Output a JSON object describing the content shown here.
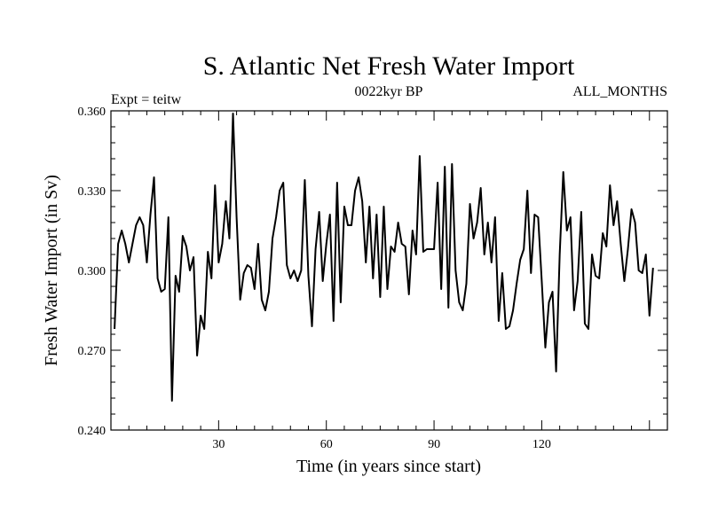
{
  "chart_data": {
    "type": "line",
    "title": "S. Atlantic Net Fresh Water Import",
    "subtitle_left": "Expt = teitw",
    "subtitle_center": "0022kyr BP",
    "subtitle_right": "ALL_MONTHS",
    "xlabel": "Time (in years since start)",
    "ylabel": "Fresh Water Import (in Sv)",
    "xlim": [
      0,
      155
    ],
    "ylim": [
      0.24,
      0.36
    ],
    "x_ticks": [
      30,
      60,
      90,
      120
    ],
    "x_tick_labels": [
      "30",
      "60",
      "90",
      "120"
    ],
    "y_ticks": [
      0.24,
      0.27,
      0.3,
      0.33,
      0.36
    ],
    "y_tick_labels": [
      "0.240",
      "0.270",
      "0.300",
      "0.330",
      "0.360"
    ],
    "grid": false,
    "series": [
      {
        "name": "Net Fresh Water Import",
        "x_start": 1,
        "x_step": 1,
        "values": [
          0.278,
          0.31,
          0.315,
          0.31,
          0.303,
          0.31,
          0.317,
          0.32,
          0.317,
          0.303,
          0.321,
          0.335,
          0.297,
          0.292,
          0.293,
          0.32,
          0.251,
          0.298,
          0.292,
          0.313,
          0.309,
          0.3,
          0.305,
          0.268,
          0.283,
          0.278,
          0.307,
          0.297,
          0.332,
          0.303,
          0.31,
          0.326,
          0.312,
          0.359,
          0.32,
          0.289,
          0.299,
          0.302,
          0.301,
          0.293,
          0.31,
          0.289,
          0.285,
          0.292,
          0.312,
          0.32,
          0.33,
          0.333,
          0.302,
          0.297,
          0.3,
          0.296,
          0.3,
          0.334,
          0.298,
          0.279,
          0.308,
          0.322,
          0.296,
          0.31,
          0.321,
          0.281,
          0.333,
          0.288,
          0.324,
          0.317,
          0.317,
          0.33,
          0.335,
          0.326,
          0.303,
          0.324,
          0.297,
          0.321,
          0.29,
          0.324,
          0.293,
          0.309,
          0.307,
          0.318,
          0.31,
          0.309,
          0.291,
          0.315,
          0.306,
          0.343,
          0.307,
          0.308,
          0.308,
          0.308,
          0.333,
          0.293,
          0.339,
          0.286,
          0.34,
          0.3,
          0.288,
          0.285,
          0.295,
          0.325,
          0.312,
          0.318,
          0.331,
          0.306,
          0.318,
          0.303,
          0.32,
          0.281,
          0.299,
          0.278,
          0.279,
          0.285,
          0.295,
          0.304,
          0.308,
          0.33,
          0.299,
          0.321,
          0.32,
          0.296,
          0.271,
          0.288,
          0.292,
          0.262,
          0.306,
          0.337,
          0.315,
          0.32,
          0.285,
          0.296,
          0.322,
          0.28,
          0.278,
          0.306,
          0.298,
          0.297,
          0.314,
          0.309,
          0.332,
          0.317,
          0.326,
          0.31,
          0.296,
          0.308,
          0.323,
          0.318,
          0.3,
          0.299,
          0.306,
          0.283,
          0.301
        ]
      }
    ]
  }
}
